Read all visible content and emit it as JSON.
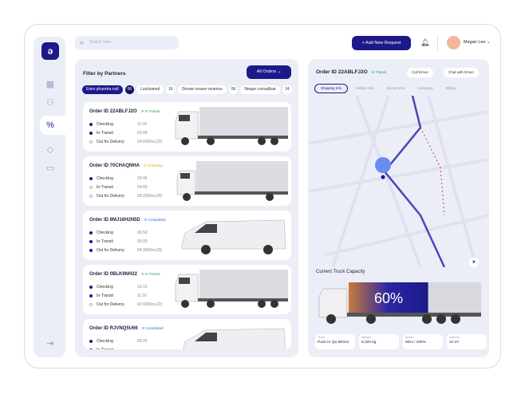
{
  "search": {
    "placeholder": "Search here"
  },
  "header": {
    "add_request": "+ Add New Request",
    "user_name": "Megan Lee ⌄"
  },
  "filter": {
    "title": "Filter by Partners",
    "all_orders": "All Orders ⌄",
    "partners": [
      {
        "name": "Enim pharetra null",
        "count": "06",
        "active": true
      },
      {
        "name": "Laciniamal",
        "count": "16"
      },
      {
        "name": "Ornare ornare vivamus",
        "count": "06"
      },
      {
        "name": "Neque convallisar",
        "count": "24"
      }
    ]
  },
  "orders": [
    {
      "id": "Order ID 22ABLFJ2O",
      "status": "In Transit",
      "status_color": "#2a9d4a",
      "steps": [
        {
          "label": "Checking",
          "time": "11:10",
          "done": true
        },
        {
          "label": "In-Transit",
          "time": "03:00",
          "done": true
        },
        {
          "label": "Out for Delivery",
          "time": "04:00(Nov,22)",
          "done": false
        }
      ],
      "vehicle": "semi"
    },
    {
      "id": "Order ID 70CHAQNHA",
      "status": "Checking",
      "status_color": "#d9a400",
      "steps": [
        {
          "label": "Checking",
          "time": "02:45",
          "done": true
        },
        {
          "label": "In-Transit",
          "time": "04:00",
          "done": false
        },
        {
          "label": "Out for Delivery",
          "time": "05:20(Nov,24)",
          "done": false
        }
      ],
      "vehicle": "box"
    },
    {
      "id": "Order ID 8MJ16H2N5D",
      "status": "Completed",
      "status_color": "#2a6fd9",
      "steps": [
        {
          "label": "Checking",
          "time": "06:50",
          "done": true
        },
        {
          "label": "In-Transit",
          "time": "05:00",
          "done": true
        },
        {
          "label": "Out for Delivery",
          "time": "04:30(Nov,20)",
          "done": true
        }
      ],
      "vehicle": "van"
    },
    {
      "id": "Order ID 0BLK9NH22",
      "status": "In Transit",
      "status_color": "#2a9d4a",
      "steps": [
        {
          "label": "Checking",
          "time": "10:10",
          "done": true
        },
        {
          "label": "In-Transit",
          "time": "11:10",
          "done": true
        },
        {
          "label": "Out for Delivery",
          "time": "02:00(Nov,22)",
          "done": false
        }
      ],
      "vehicle": "semi"
    },
    {
      "id": "Order ID RJVNQ5U66",
      "status": "Completed",
      "status_color": "#2a6fd9",
      "steps": [
        {
          "label": "Checking",
          "time": "05:20",
          "done": true
        },
        {
          "label": "In-Transit",
          "time": "",
          "done": true
        }
      ],
      "vehicle": "van"
    }
  ],
  "detail": {
    "order_id": "Order ID 22ABLFJ2O",
    "status": "In Transit",
    "call": "Call Driver",
    "chat": "Chat with Driver",
    "tabs": [
      "Shipping Info",
      "Vehicle Info",
      "Documents",
      "Company",
      "Billing"
    ],
    "capacity_title": "Current Truck Capacity",
    "capacity_percent": 60,
    "capacity_label": "60%",
    "stats": [
      {
        "label": "Truck",
        "value": "Pack IV Qo 5E012"
      },
      {
        "label": "Weight",
        "value": "8,320 kg"
      },
      {
        "label": "Space",
        "value": "60% / 100%"
      },
      {
        "label": "Volume",
        "value": "24 m³"
      }
    ]
  },
  "colors": {
    "accent": "#1c1a8a",
    "panel": "#eceef7"
  }
}
